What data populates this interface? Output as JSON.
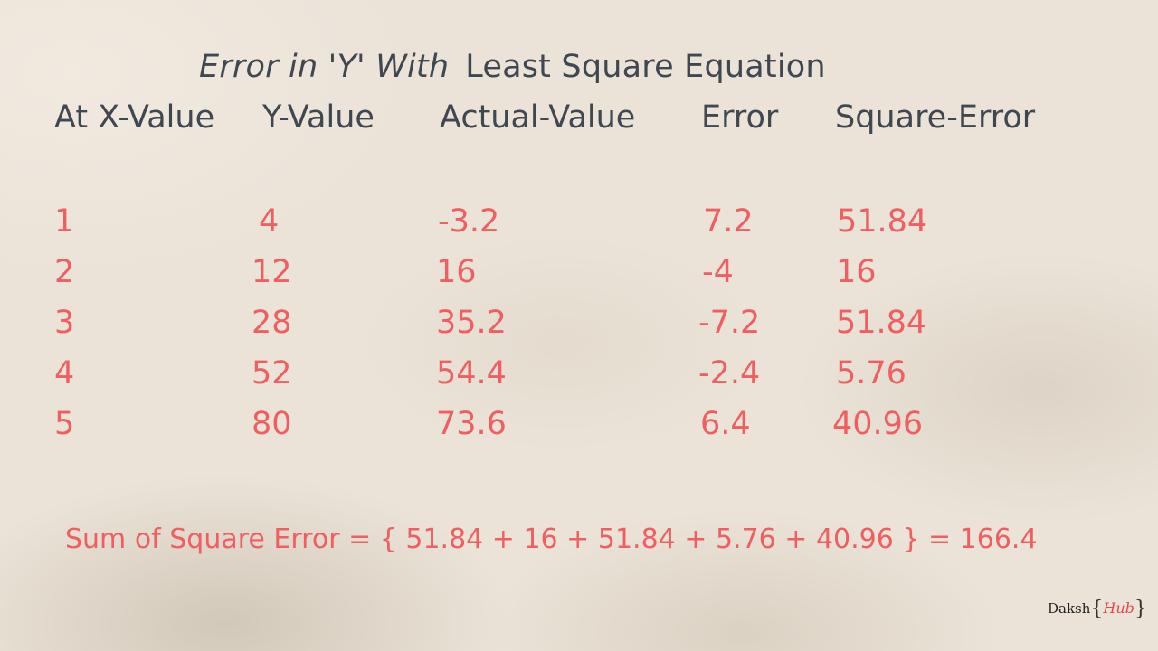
{
  "title": {
    "italic_part": "Error in 'Y' With",
    "rest": "Least Square Equation"
  },
  "table": {
    "columns": [
      "At X-Value",
      "Y-Value",
      "Actual-Value",
      "Error",
      "Square-Error"
    ],
    "rows": [
      [
        "1",
        "4",
        "-3.2",
        "7.2",
        "51.84"
      ],
      [
        "2",
        "12",
        "16",
        "-4",
        "16"
      ],
      [
        "3",
        "28",
        "35.2",
        "-7.2",
        "51.84"
      ],
      [
        "4",
        "52",
        "54.4",
        "-2.4",
        "5.76"
      ],
      [
        "5",
        "80",
        "73.6",
        "6.4",
        "40.96"
      ]
    ]
  },
  "sum_line": "Sum of Square Error = { 51.84 + 16 + 51.84 + 5.76 + 40.96 } = 166.4",
  "logo": {
    "left_text": "Daksh",
    "brace_open": "{",
    "right_text": "Hub",
    "brace_close": "}"
  },
  "colors": {
    "heading": "#3f4750",
    "values": "#ef5f62",
    "background": "#ebe3d8"
  }
}
